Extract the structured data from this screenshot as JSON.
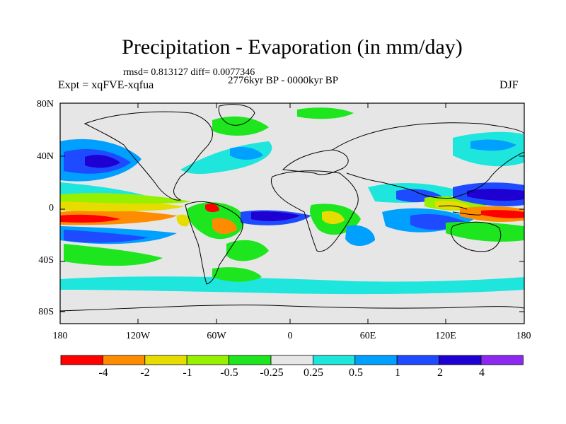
{
  "title": "Precipitation - Evaporation (in mm/day)",
  "stats": "rmsd= 0.813127 diff= 0.0077346",
  "experiment": "Expt = xqFVE-xqfua",
  "period": "2776kyr BP - 0000kyr BP",
  "season": "DJF",
  "lat_labels": [
    "80N",
    "40N",
    "0",
    "40S",
    "80S"
  ],
  "lon_labels": [
    "180",
    "120W",
    "60W",
    "0",
    "60E",
    "120E",
    "180"
  ],
  "colorbar": {
    "labels": [
      "-4",
      "-2",
      "-1",
      "-0.5",
      "-0.25",
      "0.25",
      "0.5",
      "1",
      "2",
      "4"
    ],
    "colors": [
      "#ff0000",
      "#ff8c00",
      "#e6dc00",
      "#96f000",
      "#1ee61e",
      "#e6e6e6",
      "#1ee6dc",
      "#00a0ff",
      "#1e4bff",
      "#1e00d2",
      "#8c28f0"
    ]
  },
  "map": {
    "ocean_gray": "#e6e6e6"
  }
}
